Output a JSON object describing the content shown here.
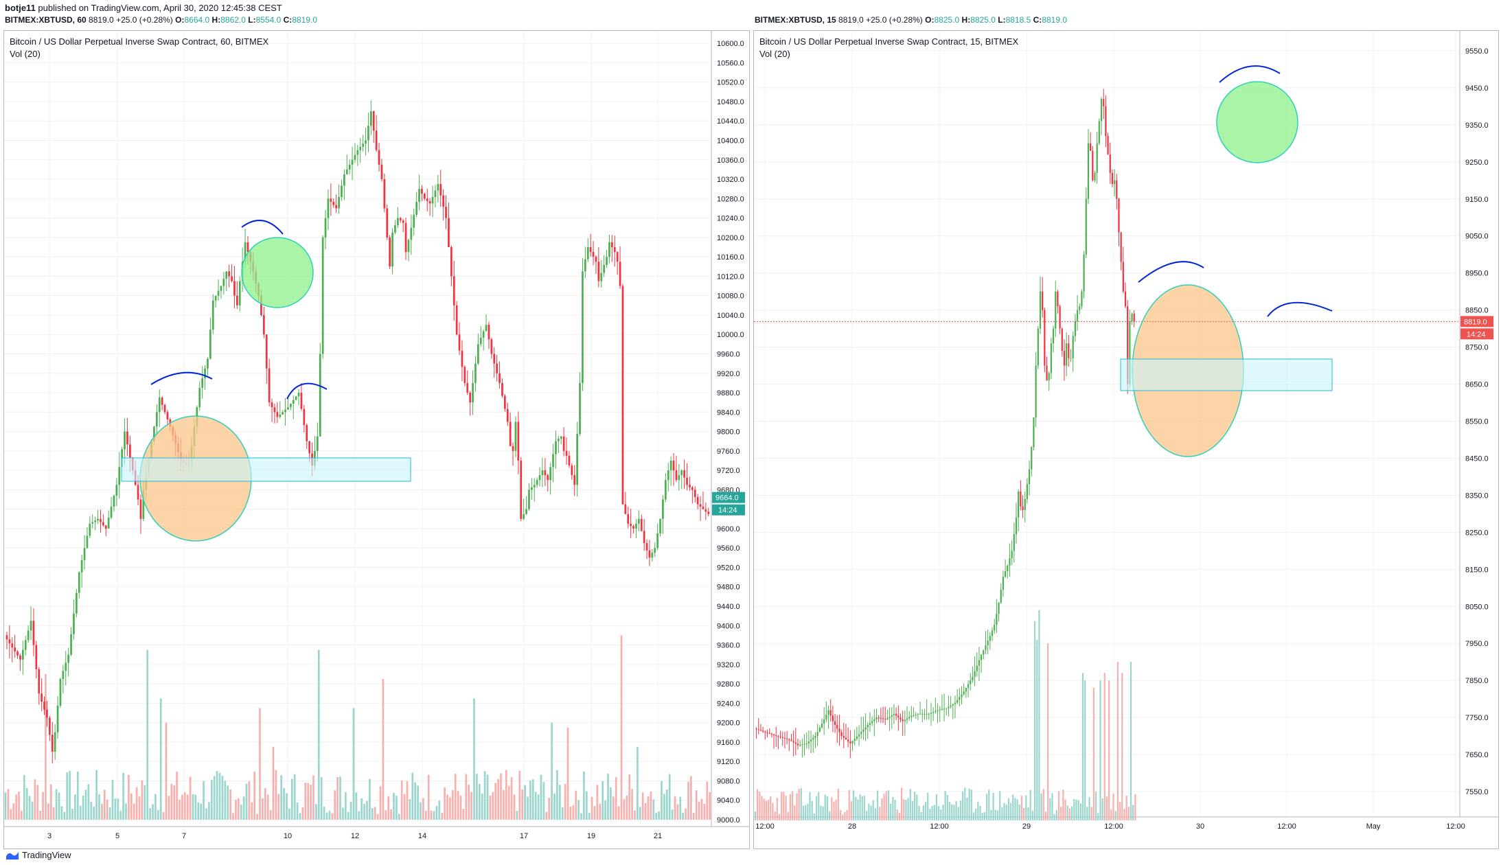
{
  "header": {
    "author": "botje11",
    "published_text": "published on TradingView.com, April 30, 2020 12:45:38 CEST"
  },
  "left_ohlc": {
    "symbol": "BITMEX:XBTUSD, 60",
    "last": "8819.0",
    "change": "+25.0 (+0.28%)",
    "o_label": "O:",
    "o": "8664.0",
    "h_label": "H:",
    "h": "8862.0",
    "l_label": "L:",
    "l": "8554.0",
    "c_label": "C:",
    "c": "8819.0"
  },
  "right_ohlc": {
    "symbol": "BITMEX:XBTUSD, 15",
    "last": "8819.0",
    "change": "+25.0 (+0.28%)",
    "o_label": "O:",
    "o": "8825.0",
    "h_label": "H:",
    "h": "8825.0",
    "l_label": "L:",
    "l": "8818.5",
    "c_label": "C:",
    "c": "8819.0"
  },
  "footer": {
    "brand": "TradingView"
  },
  "colors": {
    "up": "#26a69a",
    "down": "#ef5350",
    "up_candle": "#4caf50",
    "down_candle": "#ef3340",
    "vol_up": "#8fd2c9",
    "vol_down": "#f5a8a6",
    "grid": "#eef0f3",
    "orange_fill": "#fbc58a",
    "green_fill": "#8ef08a",
    "zone_fill": "#c8f5fb",
    "zone_stroke": "#29b6d6",
    "arc": "#0026d9"
  },
  "chart_data": [
    {
      "type": "candlestick",
      "title": "Bitcoin / US Dollar Perpetual Inverse Swap Contract, 60, BITMEX",
      "indicator": "Vol (20)",
      "ylim": [
        9000,
        10620
      ],
      "y_ticks": [
        "10600.0",
        "10560.0",
        "10520.0",
        "10480.0",
        "10440.0",
        "10400.0",
        "10360.0",
        "10320.0",
        "10280.0",
        "10240.0",
        "10200.0",
        "10160.0",
        "10120.0",
        "10080.0",
        "10040.0",
        "10000.0",
        "9960.0",
        "9920.0",
        "9880.0",
        "9840.0",
        "9800.0",
        "9760.0",
        "9720.0",
        "9680.0",
        "9640.0",
        "9600.0",
        "9560.0",
        "9520.0",
        "9480.0",
        "9440.0",
        "9400.0",
        "9360.0",
        "9320.0",
        "9280.0",
        "9240.0",
        "9200.0",
        "9160.0",
        "9120.0",
        "9080.0",
        "9040.0",
        "9000.0"
      ],
      "x_ticks": [
        "3",
        "5",
        "7",
        "10",
        "12",
        "14",
        "17",
        "19",
        "21"
      ],
      "current_price": "9664.0",
      "countdown": "14:24",
      "path_points": [
        [
          0,
          9380
        ],
        [
          6,
          9330
        ],
        [
          10,
          9410
        ],
        [
          13,
          9260
        ],
        [
          16,
          9210
        ],
        [
          18,
          9140
        ],
        [
          19,
          9180
        ],
        [
          21,
          9290
        ],
        [
          24,
          9340
        ],
        [
          28,
          9510
        ],
        [
          32,
          9610
        ],
        [
          35,
          9620
        ],
        [
          38,
          9600
        ],
        [
          42,
          9690
        ],
        [
          45,
          9800
        ],
        [
          48,
          9720
        ],
        [
          50,
          9660
        ],
        [
          51,
          9620
        ],
        [
          52,
          9680
        ],
        [
          55,
          9780
        ],
        [
          58,
          9870
        ],
        [
          62,
          9810
        ],
        [
          66,
          9740
        ],
        [
          69,
          9730
        ],
        [
          73,
          9890
        ],
        [
          76,
          9950
        ],
        [
          78,
          10070
        ],
        [
          81,
          10100
        ],
        [
          83,
          10130
        ],
        [
          85,
          10110
        ],
        [
          86,
          10080
        ],
        [
          87,
          10060
        ],
        [
          88,
          10110
        ],
        [
          90,
          10190
        ],
        [
          93,
          10130
        ],
        [
          95,
          10080
        ],
        [
          97,
          10000
        ],
        [
          99,
          9860
        ],
        [
          102,
          9830
        ],
        [
          106,
          9850
        ],
        [
          110,
          9880
        ],
        [
          113,
          9780
        ],
        [
          115,
          9730
        ],
        [
          117,
          9790
        ],
        [
          118,
          9960
        ],
        [
          119,
          10200
        ],
        [
          121,
          10280
        ],
        [
          124,
          10260
        ],
        [
          127,
          10330
        ],
        [
          129,
          10350
        ],
        [
          132,
          10380
        ],
        [
          135,
          10400
        ],
        [
          137,
          10460
        ],
        [
          139,
          10380
        ],
        [
          141,
          10320
        ],
        [
          143,
          10200
        ],
        [
          144,
          10140
        ],
        [
          145,
          10210
        ],
        [
          147,
          10240
        ],
        [
          149,
          10230
        ],
        [
          150,
          10170
        ],
        [
          152,
          10220
        ],
        [
          155,
          10300
        ],
        [
          157,
          10280
        ],
        [
          159,
          10270
        ],
        [
          162,
          10310
        ],
        [
          165,
          10240
        ],
        [
          167,
          10120
        ],
        [
          169,
          10000
        ],
        [
          172,
          9900
        ],
        [
          174,
          9860
        ],
        [
          177,
          9980
        ],
        [
          180,
          10020
        ],
        [
          182,
          9960
        ],
        [
          185,
          9900
        ],
        [
          188,
          9820
        ],
        [
          189,
          9770
        ],
        [
          190,
          9760
        ],
        [
          191,
          9820
        ],
        [
          192,
          9740
        ],
        [
          193,
          9620
        ],
        [
          195,
          9640
        ],
        [
          196,
          9680
        ],
        [
          198,
          9690
        ],
        [
          201,
          9720
        ],
        [
          203,
          9700
        ],
        [
          206,
          9780
        ],
        [
          208,
          9790
        ],
        [
          209,
          9760
        ],
        [
          210,
          9750
        ],
        [
          213,
          9690
        ],
        [
          215,
          9900
        ],
        [
          216,
          10130
        ],
        [
          218,
          10180
        ],
        [
          221,
          10150
        ],
        [
          222,
          10110
        ],
        [
          225,
          10160
        ],
        [
          226,
          10190
        ],
        [
          228,
          10170
        ],
        [
          229,
          10150
        ],
        [
          230,
          10100
        ],
        [
          231,
          9650
        ],
        [
          233,
          9610
        ],
        [
          235,
          9600
        ],
        [
          237,
          9620
        ],
        [
          239,
          9570
        ],
        [
          241,
          9540
        ],
        [
          243,
          9560
        ],
        [
          245,
          9620
        ],
        [
          247,
          9700
        ],
        [
          249,
          9740
        ],
        [
          251,
          9700
        ],
        [
          253,
          9720
        ],
        [
          255,
          9690
        ],
        [
          257,
          9680
        ],
        [
          259,
          9650
        ],
        [
          263,
          9630
        ]
      ],
      "volume_peaks": [
        [
          15,
          9300
        ],
        [
          53,
          9350
        ],
        [
          58,
          9250
        ],
        [
          60,
          9200
        ],
        [
          95,
          9230
        ],
        [
          100,
          9150
        ],
        [
          117,
          9350
        ],
        [
          130,
          9230
        ],
        [
          141,
          9290
        ],
        [
          175,
          9250
        ],
        [
          204,
          9200
        ],
        [
          210,
          9190
        ],
        [
          230,
          9380
        ],
        [
          236,
          9150
        ]
      ]
    },
    {
      "type": "candlestick",
      "title": "Bitcoin / US Dollar Perpetual Inverse Swap Contract, 15, BITMEX",
      "indicator": "Vol (20)",
      "ylim": [
        7500,
        9600
      ],
      "y_ticks": [
        "9550.0",
        "9450.0",
        "9350.0",
        "9250.0",
        "9150.0",
        "9050.0",
        "8950.0",
        "8850.0",
        "8750.0",
        "8650.0",
        "8550.0",
        "8450.0",
        "8350.0",
        "8250.0",
        "8150.0",
        "8050.0",
        "7950.0",
        "7850.0",
        "7750.0",
        "7650.0",
        "7550.0"
      ],
      "x_ticks": [
        "12:00",
        "28",
        "12:00",
        "29",
        "12:00",
        "30",
        "12:00",
        "May",
        "12:00"
      ],
      "current_price": "8819.0",
      "countdown": "14:24",
      "path_points": [
        [
          0,
          7720
        ],
        [
          5,
          7710
        ],
        [
          10,
          7700
        ],
        [
          16,
          7690
        ],
        [
          20,
          7675
        ],
        [
          24,
          7680
        ],
        [
          28,
          7700
        ],
        [
          32,
          7745
        ],
        [
          34,
          7770
        ],
        [
          36,
          7740
        ],
        [
          40,
          7700
        ],
        [
          44,
          7680
        ],
        [
          48,
          7705
        ],
        [
          52,
          7730
        ],
        [
          56,
          7750
        ],
        [
          60,
          7745
        ],
        [
          64,
          7760
        ],
        [
          68,
          7740
        ],
        [
          72,
          7755
        ],
        [
          76,
          7760
        ],
        [
          80,
          7760
        ],
        [
          84,
          7770
        ],
        [
          88,
          7775
        ],
        [
          92,
          7790
        ],
        [
          96,
          7820
        ],
        [
          100,
          7860
        ],
        [
          104,
          7920
        ],
        [
          108,
          7970
        ],
        [
          110,
          8000
        ],
        [
          112,
          8060
        ],
        [
          114,
          8130
        ],
        [
          116,
          8160
        ],
        [
          118,
          8200
        ],
        [
          120,
          8290
        ],
        [
          121,
          8360
        ],
        [
          122,
          8320
        ],
        [
          123,
          8310
        ],
        [
          124,
          8340
        ],
        [
          125,
          8380
        ],
        [
          126,
          8420
        ],
        [
          127,
          8480
        ],
        [
          128,
          8560
        ],
        [
          129,
          8700
        ],
        [
          130,
          8800
        ],
        [
          131,
          8900
        ],
        [
          132,
          8850
        ],
        [
          133,
          8700
        ],
        [
          134,
          8660
        ],
        [
          135,
          8680
        ],
        [
          136,
          8760
        ],
        [
          137,
          8800
        ],
        [
          138,
          8900
        ],
        [
          139,
          8860
        ],
        [
          140,
          8800
        ],
        [
          141,
          8740
        ],
        [
          142,
          8700
        ],
        [
          143,
          8760
        ],
        [
          144,
          8720
        ],
        [
          145,
          8720
        ],
        [
          146,
          8780
        ],
        [
          147,
          8820
        ],
        [
          148,
          8850
        ],
        [
          149,
          8860
        ],
        [
          150,
          8900
        ],
        [
          151,
          9000
        ],
        [
          152,
          9150
        ],
        [
          153,
          9300
        ],
        [
          154,
          9280
        ],
        [
          155,
          9200
        ],
        [
          156,
          9220
        ],
        [
          157,
          9300
        ],
        [
          158,
          9360
        ],
        [
          159,
          9420
        ],
        [
          160,
          9400
        ],
        [
          161,
          9320
        ],
        [
          162,
          9270
        ],
        [
          163,
          9220
        ],
        [
          164,
          9190
        ],
        [
          165,
          9200
        ],
        [
          166,
          9150
        ],
        [
          167,
          9060
        ],
        [
          168,
          8980
        ],
        [
          169,
          8900
        ],
        [
          170,
          8860
        ],
        [
          171,
          8650
        ],
        [
          172,
          8820
        ],
        [
          173,
          8840
        ],
        [
          174,
          8819
        ]
      ],
      "volume_peaks": [
        [
          128,
          8010
        ],
        [
          129,
          7960
        ],
        [
          130,
          8040
        ],
        [
          134,
          7950
        ],
        [
          150,
          7870
        ],
        [
          151,
          7850
        ],
        [
          155,
          7830
        ],
        [
          158,
          7850
        ],
        [
          160,
          7870
        ],
        [
          162,
          7850
        ],
        [
          166,
          7900
        ],
        [
          168,
          7870
        ],
        [
          172,
          7900
        ]
      ]
    }
  ]
}
